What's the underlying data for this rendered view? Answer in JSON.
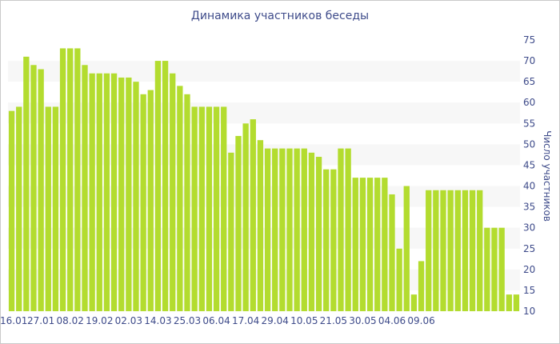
{
  "chart_data": {
    "type": "bar",
    "title": "Динамика участников беседы",
    "xlabel": "",
    "ylabel": "Число участников",
    "ylim": [
      10,
      75
    ],
    "y_ticks": [
      10,
      15,
      20,
      25,
      30,
      35,
      40,
      45,
      50,
      55,
      60,
      65,
      70,
      75
    ],
    "x_tick_labels": [
      "16.01",
      "27.01",
      "08.02",
      "19.02",
      "02.03",
      "14.03",
      "25.03",
      "06.04",
      "17.04",
      "29.04",
      "10.05",
      "21.05",
      "30.05",
      "04.06",
      "09.06"
    ],
    "x_tick_positions": [
      0,
      4,
      8,
      12,
      16,
      20,
      24,
      28,
      32,
      36,
      40,
      44,
      48,
      52,
      56
    ],
    "grid": "alternating horizontal bands",
    "colors": {
      "bar": "#b3dc2f",
      "text": "#3e4b8a",
      "band": "#f7f7f7"
    },
    "values": [
      58,
      59,
      71,
      69,
      68,
      59,
      59,
      73,
      73,
      73,
      69,
      67,
      67,
      67,
      67,
      66,
      66,
      65,
      62,
      63,
      70,
      70,
      67,
      64,
      62,
      59,
      59,
      59,
      59,
      59,
      48,
      52,
      55,
      56,
      51,
      49,
      49,
      49,
      49,
      49,
      49,
      48,
      47,
      44,
      44,
      49,
      49,
      42,
      42,
      42,
      42,
      42,
      38,
      25,
      40,
      14,
      22,
      39,
      39,
      39,
      39,
      39,
      39,
      39,
      39,
      30,
      30,
      30,
      14,
      14
    ]
  }
}
